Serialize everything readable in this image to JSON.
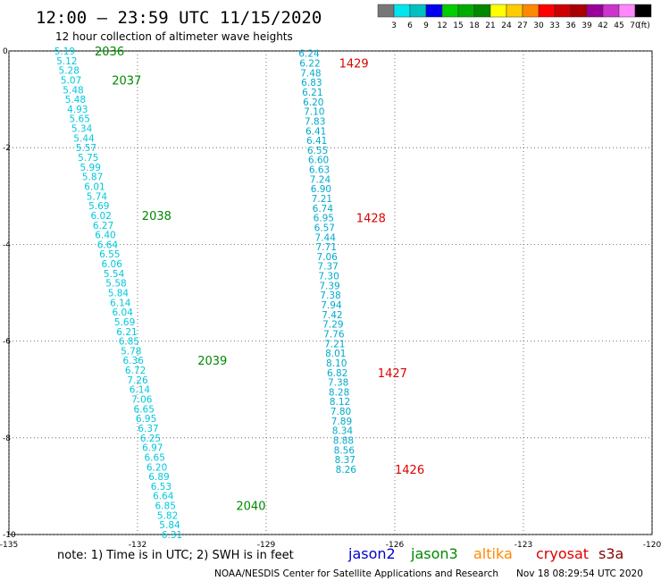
{
  "header": {
    "title": "12:00 – 23:59 UTC 11/15/2020",
    "subtitle": "12 hour collection of altimeter wave heights"
  },
  "legend": {
    "unit": "(ft)",
    "bins": [
      {
        "label": "3",
        "color": "#777777"
      },
      {
        "label": "6",
        "color": "#00e5ee"
      },
      {
        "label": "9",
        "color": "#00c0c0"
      },
      {
        "label": "12",
        "color": "#0000ee"
      },
      {
        "label": "15",
        "color": "#00cc00"
      },
      {
        "label": "18",
        "color": "#00aa00"
      },
      {
        "label": "21",
        "color": "#008800"
      },
      {
        "label": "24",
        "color": "#ffff00"
      },
      {
        "label": "27",
        "color": "#ffcc00"
      },
      {
        "label": "30",
        "color": "#ff8800"
      },
      {
        "label": "33",
        "color": "#ff0000"
      },
      {
        "label": "36",
        "color": "#cc0000"
      },
      {
        "label": "39",
        "color": "#aa0000"
      },
      {
        "label": "42",
        "color": "#990099"
      },
      {
        "label": "45",
        "color": "#cc33cc"
      },
      {
        "label": "70",
        "color": "#ff88ff"
      },
      {
        "label": "",
        "color": "#000000"
      }
    ]
  },
  "chart_data": {
    "type": "scatter",
    "xlim": [
      -135,
      -120
    ],
    "ylim": [
      -10,
      0
    ],
    "x_ticks": [
      "-135",
      "-132",
      "-129",
      "-126",
      "-123",
      "-120"
    ],
    "y_ticks": [
      "0",
      "-2",
      "-4",
      "-6",
      "-8",
      "-10"
    ],
    "grid": "dotted",
    "series": [
      {
        "name": "jason3",
        "color": "#00c8dd",
        "values": [
          {
            "x": -133.7,
            "y": 0.0,
            "v": "5.19"
          },
          {
            "x": -133.65,
            "y": -0.2,
            "v": "5.12"
          },
          {
            "x": -133.6,
            "y": -0.4,
            "v": "5.28"
          },
          {
            "x": -133.55,
            "y": -0.6,
            "v": "5.07"
          },
          {
            "x": -133.5,
            "y": -0.8,
            "v": "5.48"
          },
          {
            "x": -133.45,
            "y": -1.0,
            "v": "5.48"
          },
          {
            "x": -133.4,
            "y": -1.2,
            "v": "4.93"
          },
          {
            "x": -133.35,
            "y": -1.4,
            "v": "5.65"
          },
          {
            "x": -133.3,
            "y": -1.6,
            "v": "5.34"
          },
          {
            "x": -133.25,
            "y": -1.8,
            "v": "5.44"
          },
          {
            "x": -133.2,
            "y": -2.0,
            "v": "5.57"
          },
          {
            "x": -133.15,
            "y": -2.2,
            "v": "5.75"
          },
          {
            "x": -133.1,
            "y": -2.4,
            "v": "5.99"
          },
          {
            "x": -133.05,
            "y": -2.6,
            "v": "5.87"
          },
          {
            "x": -133.0,
            "y": -2.8,
            "v": "6.01"
          },
          {
            "x": -132.95,
            "y": -3.0,
            "v": "5.74"
          },
          {
            "x": -132.9,
            "y": -3.2,
            "v": "5.69"
          },
          {
            "x": -132.85,
            "y": -3.4,
            "v": "6.02"
          },
          {
            "x": -132.8,
            "y": -3.6,
            "v": "6.27"
          },
          {
            "x": -132.75,
            "y": -3.8,
            "v": "6.40"
          },
          {
            "x": -132.7,
            "y": -4.0,
            "v": "6.64"
          },
          {
            "x": -132.65,
            "y": -4.2,
            "v": "6.55"
          },
          {
            "x": -132.6,
            "y": -4.4,
            "v": "6.06"
          },
          {
            "x": -132.55,
            "y": -4.6,
            "v": "5.54"
          },
          {
            "x": -132.5,
            "y": -4.8,
            "v": "5.58"
          },
          {
            "x": -132.45,
            "y": -5.0,
            "v": "5.84"
          },
          {
            "x": -132.4,
            "y": -5.2,
            "v": "6.14"
          },
          {
            "x": -132.35,
            "y": -5.4,
            "v": "6.04"
          },
          {
            "x": -132.3,
            "y": -5.6,
            "v": "5.69"
          },
          {
            "x": -132.25,
            "y": -5.8,
            "v": "6.21"
          },
          {
            "x": -132.2,
            "y": -6.0,
            "v": "6.85"
          },
          {
            "x": -132.15,
            "y": -6.2,
            "v": "5.78"
          },
          {
            "x": -132.1,
            "y": -6.4,
            "v": "6.36"
          },
          {
            "x": -132.05,
            "y": -6.6,
            "v": "6.72"
          },
          {
            "x": -132.0,
            "y": -6.8,
            "v": "7.26"
          },
          {
            "x": -131.95,
            "y": -7.0,
            "v": "6.14"
          },
          {
            "x": -131.9,
            "y": -7.2,
            "v": "7.06"
          },
          {
            "x": -131.85,
            "y": -7.4,
            "v": "6.65"
          },
          {
            "x": -131.8,
            "y": -7.6,
            "v": "6.95"
          },
          {
            "x": -131.75,
            "y": -7.8,
            "v": "6.37"
          },
          {
            "x": -131.7,
            "y": -8.0,
            "v": "6.25"
          },
          {
            "x": -131.65,
            "y": -8.2,
            "v": "6.97"
          },
          {
            "x": -131.6,
            "y": -8.4,
            "v": "6.65"
          },
          {
            "x": -131.55,
            "y": -8.6,
            "v": "6.20"
          },
          {
            "x": -131.5,
            "y": -8.8,
            "v": "6.89"
          },
          {
            "x": -131.45,
            "y": -9.0,
            "v": "6.53"
          },
          {
            "x": -131.4,
            "y": -9.2,
            "v": "6.64"
          },
          {
            "x": -131.35,
            "y": -9.4,
            "v": "6.85"
          },
          {
            "x": -131.3,
            "y": -9.6,
            "v": "5.82"
          },
          {
            "x": -131.25,
            "y": -9.8,
            "v": "5.84"
          },
          {
            "x": -131.2,
            "y": -10.0,
            "v": "6.31"
          }
        ]
      },
      {
        "name": "cryosat",
        "color": "#00aacc",
        "values": [
          {
            "x": -128.0,
            "y": -0.05,
            "v": "6.24"
          },
          {
            "x": -127.98,
            "y": -0.25,
            "v": "6.22"
          },
          {
            "x": -127.96,
            "y": -0.45,
            "v": "7.48"
          },
          {
            "x": -127.94,
            "y": -0.65,
            "v": "6.83"
          },
          {
            "x": -127.92,
            "y": -0.85,
            "v": "6.21"
          },
          {
            "x": -127.9,
            "y": -1.05,
            "v": "6.20"
          },
          {
            "x": -127.88,
            "y": -1.25,
            "v": "7.10"
          },
          {
            "x": -127.86,
            "y": -1.45,
            "v": "7.83"
          },
          {
            "x": -127.84,
            "y": -1.65,
            "v": "6.41"
          },
          {
            "x": -127.82,
            "y": -1.85,
            "v": "6.41"
          },
          {
            "x": -127.8,
            "y": -2.05,
            "v": "6.55"
          },
          {
            "x": -127.78,
            "y": -2.25,
            "v": "6.60"
          },
          {
            "x": -127.76,
            "y": -2.45,
            "v": "6.63"
          },
          {
            "x": -127.74,
            "y": -2.65,
            "v": "7.24"
          },
          {
            "x": -127.72,
            "y": -2.85,
            "v": "6.90"
          },
          {
            "x": -127.7,
            "y": -3.05,
            "v": "7.21"
          },
          {
            "x": -127.68,
            "y": -3.25,
            "v": "6.74"
          },
          {
            "x": -127.66,
            "y": -3.45,
            "v": "6.95"
          },
          {
            "x": -127.64,
            "y": -3.65,
            "v": "6.57"
          },
          {
            "x": -127.62,
            "y": -3.85,
            "v": "7.44"
          },
          {
            "x": -127.6,
            "y": -4.05,
            "v": "7.71"
          },
          {
            "x": -127.58,
            "y": -4.25,
            "v": "7.06"
          },
          {
            "x": -127.56,
            "y": -4.45,
            "v": "7.37"
          },
          {
            "x": -127.54,
            "y": -4.65,
            "v": "7.30"
          },
          {
            "x": -127.52,
            "y": -4.85,
            "v": "7.39"
          },
          {
            "x": -127.5,
            "y": -5.05,
            "v": "7.38"
          },
          {
            "x": -127.48,
            "y": -5.25,
            "v": "7.94"
          },
          {
            "x": -127.46,
            "y": -5.45,
            "v": "7.42"
          },
          {
            "x": -127.44,
            "y": -5.65,
            "v": "7.29"
          },
          {
            "x": -127.42,
            "y": -5.85,
            "v": "7.76"
          },
          {
            "x": -127.4,
            "y": -6.05,
            "v": "7.21"
          },
          {
            "x": -127.38,
            "y": -6.25,
            "v": "8.01"
          },
          {
            "x": -127.36,
            "y": -6.45,
            "v": "8.10"
          },
          {
            "x": -127.34,
            "y": -6.65,
            "v": "6.82"
          },
          {
            "x": -127.32,
            "y": -6.85,
            "v": "7.38"
          },
          {
            "x": -127.3,
            "y": -7.05,
            "v": "8.28"
          },
          {
            "x": -127.28,
            "y": -7.25,
            "v": "8.12"
          },
          {
            "x": -127.26,
            "y": -7.45,
            "v": "7.80"
          },
          {
            "x": -127.24,
            "y": -7.65,
            "v": "7.89"
          },
          {
            "x": -127.22,
            "y": -7.85,
            "v": "8.34"
          },
          {
            "x": -127.2,
            "y": -8.05,
            "v": "8.88"
          },
          {
            "x": -127.18,
            "y": -8.25,
            "v": "8.56"
          },
          {
            "x": -127.16,
            "y": -8.45,
            "v": "8.37"
          },
          {
            "x": -127.14,
            "y": -8.65,
            "v": "8.26"
          }
        ]
      }
    ],
    "pass_labels": [
      {
        "text": "2036",
        "x": -133.0,
        "y": 0.0,
        "color": "#008800"
      },
      {
        "text": "2037",
        "x": -132.6,
        "y": -0.6,
        "color": "#008800"
      },
      {
        "text": "2038",
        "x": -131.9,
        "y": -3.4,
        "color": "#008800"
      },
      {
        "text": "2039",
        "x": -130.6,
        "y": -6.4,
        "color": "#008800"
      },
      {
        "text": "2040",
        "x": -129.7,
        "y": -9.4,
        "color": "#008800"
      },
      {
        "text": "1429",
        "x": -127.3,
        "y": -0.25,
        "color": "#dd0000"
      },
      {
        "text": "1428",
        "x": -126.9,
        "y": -3.45,
        "color": "#dd0000"
      },
      {
        "text": "1427",
        "x": -126.4,
        "y": -6.65,
        "color": "#dd0000"
      },
      {
        "text": "1426",
        "x": -126.0,
        "y": -8.65,
        "color": "#dd0000"
      }
    ]
  },
  "footer": {
    "note": "note:  1) Time is in UTC;  2) SWH is in feet",
    "missions": [
      {
        "name": "jason2",
        "color": "#0000cc"
      },
      {
        "name": "jason3",
        "color": "#008800"
      },
      {
        "name": "altika",
        "color": "#ff8800"
      },
      {
        "name": "cryosat",
        "color": "#dd0000"
      },
      {
        "name": "s3a",
        "color": "#880000"
      }
    ],
    "credit": "NOAA/NESDIS Center for Satellite Applications and Research",
    "timestamp": "Nov 18 08:29:54 UTC 2020"
  }
}
